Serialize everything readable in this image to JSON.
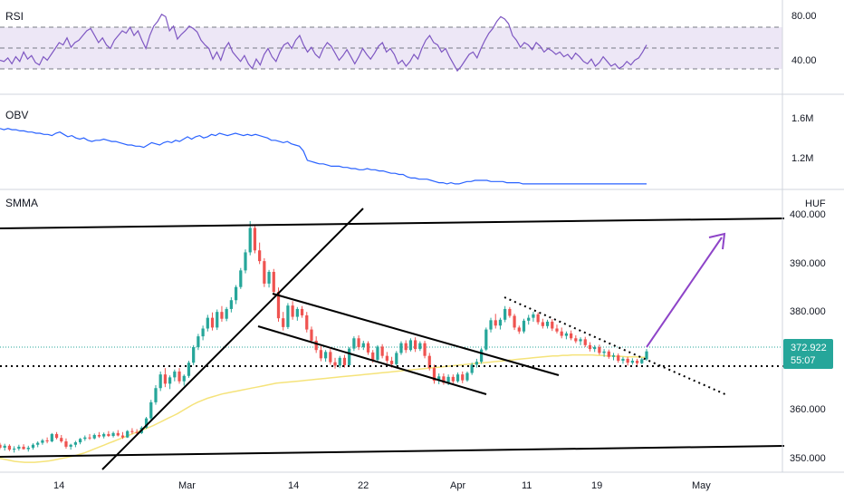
{
  "panes": {
    "rsi": {
      "title": "RSI",
      "ticks": [
        "80.00",
        "40.00"
      ]
    },
    "obv": {
      "title": "OBV",
      "ticks": [
        "1.6M",
        "1.2M"
      ]
    },
    "price": {
      "title": "SMMA",
      "currency": "HUF",
      "ticks": [
        "400.000",
        "390.000",
        "380.000",
        "360.000",
        "350.000"
      ],
      "last_price": "372.922",
      "countdown": "55:07"
    }
  },
  "time_axis": {
    "labels": [
      "14",
      "Mar",
      "14",
      "22",
      "Apr",
      "11",
      "19",
      "May"
    ]
  },
  "colors": {
    "rsi_line": "#7e57c2",
    "rsi_band": "#ede7f6",
    "obv_line": "#2962ff",
    "smma_line": "#f5e37a",
    "candle_up": "#26a69a",
    "candle_down": "#ef5350",
    "last_price_label": "#26a69a",
    "drawings": "#000000",
    "arrow": "#8e44c8"
  },
  "chart_data": [
    {
      "type": "line",
      "name": "RSI",
      "ylim": [
        20,
        90
      ],
      "levels": [
        70,
        50,
        30
      ],
      "x_start": "2021-02-05",
      "values": [
        45,
        44,
        47,
        42,
        48,
        44,
        52,
        46,
        49,
        43,
        41,
        48,
        45,
        50,
        55,
        60,
        58,
        64,
        56,
        60,
        62,
        66,
        70,
        72,
        66,
        60,
        64,
        58,
        55,
        62,
        66,
        70,
        68,
        73,
        66,
        70,
        62,
        55,
        66,
        74,
        78,
        84,
        82,
        70,
        74,
        63,
        67,
        70,
        74,
        72,
        69,
        62,
        58,
        55,
        46,
        52,
        45,
        55,
        60,
        52,
        48,
        44,
        49,
        42,
        38,
        46,
        41,
        50,
        55,
        48,
        44,
        52,
        58,
        60,
        55,
        62,
        66,
        58,
        52,
        56,
        50,
        47,
        55,
        60,
        57,
        51,
        45,
        49,
        54,
        48,
        42,
        48,
        55,
        50,
        46,
        51,
        57,
        60,
        52,
        55,
        50,
        42,
        45,
        40,
        44,
        50,
        46,
        55,
        62,
        66,
        60,
        58,
        52,
        55,
        48,
        42,
        36,
        40,
        45,
        50,
        52,
        47,
        55,
        62,
        68,
        72,
        78,
        82,
        80,
        76,
        66,
        62,
        56,
        60,
        58,
        54,
        60,
        57,
        52,
        55,
        53,
        50,
        52,
        48,
        50,
        46,
        51,
        48,
        44,
        42,
        46,
        40,
        43,
        48,
        44,
        40,
        42,
        38,
        40,
        44,
        41,
        45,
        47,
        52,
        58
      ]
    },
    {
      "type": "line",
      "name": "OBV",
      "ylim": [
        1.0,
        1.8
      ],
      "values": [
        1.54,
        1.53,
        1.54,
        1.53,
        1.53,
        1.52,
        1.52,
        1.51,
        1.51,
        1.5,
        1.5,
        1.49,
        1.49,
        1.48,
        1.5,
        1.51,
        1.49,
        1.47,
        1.48,
        1.46,
        1.45,
        1.46,
        1.44,
        1.43,
        1.44,
        1.44,
        1.45,
        1.44,
        1.43,
        1.43,
        1.42,
        1.41,
        1.4,
        1.4,
        1.39,
        1.39,
        1.38,
        1.4,
        1.42,
        1.41,
        1.4,
        1.42,
        1.43,
        1.42,
        1.44,
        1.43,
        1.45,
        1.47,
        1.45,
        1.47,
        1.48,
        1.46,
        1.47,
        1.49,
        1.48,
        1.5,
        1.49,
        1.48,
        1.49,
        1.5,
        1.49,
        1.48,
        1.49,
        1.48,
        1.49,
        1.48,
        1.47,
        1.46,
        1.44,
        1.44,
        1.43,
        1.42,
        1.43,
        1.41,
        1.4,
        1.39,
        1.35,
        1.27,
        1.26,
        1.25,
        1.24,
        1.24,
        1.23,
        1.22,
        1.22,
        1.22,
        1.21,
        1.21,
        1.2,
        1.2,
        1.19,
        1.19,
        1.2,
        1.19,
        1.19,
        1.18,
        1.18,
        1.17,
        1.16,
        1.16,
        1.15,
        1.15,
        1.13,
        1.12,
        1.12,
        1.11,
        1.11,
        1.11,
        1.1,
        1.09,
        1.08,
        1.08,
        1.07,
        1.08,
        1.07,
        1.07,
        1.08,
        1.09,
        1.09,
        1.1,
        1.1,
        1.1,
        1.1,
        1.09,
        1.09,
        1.09,
        1.09,
        1.08,
        1.08,
        1.08,
        1.08,
        1.07,
        1.07,
        1.07,
        1.07,
        1.07,
        1.07,
        1.07,
        1.07,
        1.07,
        1.07,
        1.07,
        1.07,
        1.07,
        1.07,
        1.07,
        1.07,
        1.07,
        1.07,
        1.07,
        1.07,
        1.07,
        1.07,
        1.07,
        1.07,
        1.07,
        1.07,
        1.07,
        1.07,
        1.07,
        1.07,
        1.07,
        1.07
      ]
    },
    {
      "type": "candlestick",
      "name": "Price",
      "currency": "HUF",
      "ylim": [
        348,
        402
      ],
      "last": 372.922,
      "ohlc": [
        [
          353.8,
          354.2,
          352.9,
          353.2
        ],
        [
          353.2,
          354.0,
          352.6,
          353.6
        ],
        [
          353.6,
          353.9,
          352.5,
          352.8
        ],
        [
          352.8,
          353.5,
          352.2,
          353.0
        ],
        [
          353.0,
          353.8,
          352.6,
          353.4
        ],
        [
          353.4,
          353.9,
          352.8,
          352.9
        ],
        [
          352.9,
          353.6,
          352.4,
          353.2
        ],
        [
          353.2,
          354.1,
          352.8,
          353.8
        ],
        [
          353.8,
          354.5,
          353.3,
          354.2
        ],
        [
          354.2,
          355.0,
          353.8,
          354.7
        ],
        [
          354.7,
          355.3,
          354.1,
          354.5
        ],
        [
          354.5,
          356.2,
          354.3,
          356.0
        ],
        [
          356.0,
          356.4,
          354.9,
          355.2
        ],
        [
          355.2,
          355.8,
          354.2,
          354.5
        ],
        [
          354.5,
          355.1,
          353.0,
          353.4
        ],
        [
          353.4,
          354.0,
          352.8,
          353.8
        ],
        [
          353.8,
          354.6,
          353.3,
          354.3
        ],
        [
          354.3,
          355.2,
          353.9,
          355.0
        ],
        [
          355.0,
          355.7,
          354.6,
          355.3
        ],
        [
          355.3,
          356.0,
          354.8,
          355.1
        ],
        [
          355.1,
          356.1,
          354.9,
          355.8
        ],
        [
          355.8,
          356.4,
          355.2,
          355.5
        ],
        [
          355.5,
          356.3,
          355.1,
          356.0
        ],
        [
          356.0,
          356.6,
          355.4,
          355.6
        ],
        [
          355.6,
          356.5,
          355.3,
          356.2
        ],
        [
          356.2,
          356.8,
          355.5,
          355.7
        ],
        [
          355.7,
          356.4,
          355.0,
          355.3
        ],
        [
          355.3,
          356.8,
          355.2,
          356.6
        ],
        [
          356.6,
          357.2,
          356.0,
          356.4
        ],
        [
          356.4,
          357.0,
          355.8,
          356.2
        ],
        [
          356.2,
          357.6,
          356.0,
          357.3
        ],
        [
          357.3,
          359.5,
          357.1,
          359.2
        ],
        [
          359.2,
          363.0,
          358.8,
          362.5
        ],
        [
          362.5,
          366.0,
          362.0,
          365.4
        ],
        [
          365.4,
          368.8,
          364.8,
          368.2
        ],
        [
          368.2,
          369.5,
          365.6,
          366.3
        ],
        [
          366.3,
          368.0,
          365.2,
          367.6
        ],
        [
          367.6,
          369.2,
          366.8,
          368.8
        ],
        [
          368.8,
          369.5,
          366.3,
          366.8
        ],
        [
          366.8,
          368.2,
          365.9,
          367.9
        ],
        [
          367.9,
          371.0,
          367.5,
          370.6
        ],
        [
          370.6,
          374.2,
          370.1,
          373.8
        ],
        [
          373.8,
          376.5,
          373.2,
          376.0
        ],
        [
          376.0,
          378.2,
          375.2,
          377.6
        ],
        [
          377.6,
          380.4,
          377.0,
          379.8
        ],
        [
          379.8,
          380.9,
          377.2,
          377.8
        ],
        [
          377.8,
          381.5,
          377.3,
          381.0
        ],
        [
          381.0,
          382.2,
          379.0,
          379.6
        ],
        [
          379.6,
          382.0,
          379.1,
          381.6
        ],
        [
          381.6,
          384.0,
          380.9,
          383.4
        ],
        [
          383.4,
          386.5,
          382.6,
          386.1
        ],
        [
          386.1,
          390.0,
          385.7,
          389.5
        ],
        [
          389.5,
          393.8,
          388.9,
          393.2
        ],
        [
          393.2,
          399.6,
          392.6,
          398.2
        ],
        [
          398.2,
          398.8,
          393.0,
          393.6
        ],
        [
          393.6,
          395.2,
          390.8,
          391.4
        ],
        [
          391.4,
          392.0,
          386.1,
          386.8
        ],
        [
          386.8,
          389.6,
          386.0,
          389.2
        ],
        [
          389.2,
          389.8,
          384.4,
          385.1
        ],
        [
          385.1,
          386.0,
          379.0,
          379.7
        ],
        [
          379.7,
          381.0,
          377.2,
          377.9
        ],
        [
          377.9,
          382.8,
          377.5,
          382.3
        ],
        [
          382.3,
          383.2,
          379.4,
          380.0
        ],
        [
          380.0,
          382.0,
          379.2,
          381.6
        ],
        [
          381.6,
          382.2,
          379.8,
          380.3
        ],
        [
          380.3,
          381.0,
          376.8,
          377.4
        ],
        [
          377.4,
          378.0,
          374.6,
          375.1
        ],
        [
          375.1,
          376.0,
          372.6,
          373.2
        ],
        [
          373.2,
          374.0,
          370.9,
          371.5
        ],
        [
          371.5,
          373.2,
          370.8,
          372.8
        ],
        [
          372.8,
          373.4,
          370.2,
          370.7
        ],
        [
          370.7,
          371.6,
          369.4,
          370.0
        ],
        [
          370.0,
          372.0,
          369.5,
          371.6
        ],
        [
          371.6,
          372.2,
          369.6,
          370.1
        ],
        [
          370.1,
          373.8,
          369.9,
          373.5
        ],
        [
          373.5,
          376.0,
          373.0,
          375.6
        ],
        [
          375.6,
          376.2,
          373.2,
          373.8
        ],
        [
          373.8,
          375.1,
          373.2,
          374.6
        ],
        [
          374.6,
          375.0,
          372.2,
          372.7
        ],
        [
          372.7,
          373.2,
          370.6,
          371.2
        ],
        [
          371.2,
          374.2,
          370.9,
          373.9
        ],
        [
          373.9,
          374.4,
          371.5,
          372.0
        ],
        [
          372.0,
          372.8,
          370.5,
          371.0
        ],
        [
          371.0,
          371.8,
          369.6,
          370.3
        ],
        [
          370.3,
          373.0,
          370.0,
          372.6
        ],
        [
          372.6,
          375.0,
          372.2,
          374.6
        ],
        [
          374.6,
          375.2,
          372.6,
          373.2
        ],
        [
          373.2,
          375.6,
          372.9,
          375.2
        ],
        [
          375.2,
          375.8,
          372.8,
          373.4
        ],
        [
          373.4,
          375.0,
          373.0,
          374.6
        ],
        [
          374.6,
          375.1,
          371.5,
          372.0
        ],
        [
          372.0,
          372.6,
          369.0,
          369.5
        ],
        [
          369.5,
          370.2,
          366.3,
          366.9
        ],
        [
          366.9,
          368.4,
          366.2,
          367.8
        ],
        [
          367.8,
          368.4,
          366.1,
          366.5
        ],
        [
          366.5,
          368.2,
          366.0,
          367.7
        ],
        [
          367.7,
          368.2,
          366.3,
          366.8
        ],
        [
          366.8,
          368.6,
          366.5,
          368.2
        ],
        [
          368.2,
          368.8,
          366.4,
          367.0
        ],
        [
          367.0,
          368.8,
          366.7,
          368.5
        ],
        [
          368.5,
          370.6,
          368.1,
          370.2
        ],
        [
          370.2,
          371.4,
          369.6,
          370.8
        ],
        [
          370.8,
          373.6,
          370.4,
          373.3
        ],
        [
          373.3,
          377.8,
          373.0,
          377.4
        ],
        [
          377.4,
          379.8,
          376.8,
          379.3
        ],
        [
          379.3,
          380.6,
          377.6,
          378.2
        ],
        [
          378.2,
          379.8,
          377.4,
          379.4
        ],
        [
          379.4,
          382.2,
          378.9,
          381.6
        ],
        [
          381.6,
          382.0,
          379.8,
          380.2
        ],
        [
          380.2,
          380.6,
          377.3,
          377.8
        ],
        [
          377.8,
          378.2,
          376.5,
          377.0
        ],
        [
          377.0,
          379.6,
          376.6,
          379.2
        ],
        [
          379.2,
          380.4,
          378.4,
          379.8
        ],
        [
          379.8,
          381.0,
          379.0,
          380.5
        ],
        [
          380.5,
          380.9,
          378.4,
          378.9
        ],
        [
          378.9,
          379.6,
          377.6,
          378.1
        ],
        [
          378.1,
          379.4,
          377.6,
          379.0
        ],
        [
          379.0,
          379.5,
          377.1,
          377.6
        ],
        [
          377.6,
          378.4,
          376.6,
          377.0
        ],
        [
          377.0,
          377.8,
          375.6,
          376.1
        ],
        [
          376.1,
          377.0,
          375.4,
          376.6
        ],
        [
          376.6,
          377.2,
          375.2,
          375.6
        ],
        [
          375.6,
          376.2,
          374.6,
          375.0
        ],
        [
          375.0,
          375.8,
          374.2,
          375.4
        ],
        [
          375.4,
          375.9,
          373.8,
          374.2
        ],
        [
          374.2,
          374.8,
          372.9,
          373.4
        ],
        [
          373.4,
          374.2,
          372.8,
          373.8
        ],
        [
          373.8,
          374.3,
          372.2,
          372.6
        ],
        [
          372.6,
          373.4,
          371.8,
          372.9
        ],
        [
          372.9,
          373.3,
          371.4,
          371.8
        ],
        [
          371.8,
          372.6,
          371.1,
          372.1
        ],
        [
          372.1,
          372.5,
          370.6,
          371.0
        ],
        [
          371.0,
          371.8,
          370.4,
          371.4
        ],
        [
          371.4,
          371.8,
          370.0,
          370.6
        ],
        [
          370.6,
          371.5,
          370.2,
          371.0
        ],
        [
          371.0,
          371.4,
          370.1,
          370.5
        ],
        [
          370.5,
          371.6,
          370.3,
          371.3
        ],
        [
          371.3,
          373.4,
          371.0,
          372.922
        ]
      ],
      "smma": [
        351.0,
        350.8,
        350.6,
        350.4,
        350.3,
        350.2,
        350.2,
        350.2,
        350.3,
        350.4,
        350.5,
        350.7,
        350.9,
        351.1,
        351.3,
        351.5,
        351.8,
        352.1,
        352.5,
        352.9,
        353.3,
        353.7,
        354.1,
        354.5,
        354.9,
        355.3,
        355.7,
        356.1,
        356.5,
        356.9,
        357.3,
        357.7,
        358.2,
        358.7,
        359.2,
        359.7,
        360.2,
        360.8,
        361.4,
        362.0,
        362.5,
        362.9,
        363.3,
        363.6,
        363.9,
        364.2,
        364.4,
        364.6,
        364.8,
        365.0,
        365.2,
        365.4,
        365.6,
        365.8,
        366.0,
        366.2,
        366.4,
        366.5,
        366.6,
        366.7,
        366.8,
        366.9,
        367.0,
        367.1,
        367.2,
        367.3,
        367.4,
        367.5,
        367.6,
        367.7,
        367.8,
        367.9,
        368.0,
        368.1,
        368.2,
        368.3,
        368.4,
        368.5,
        368.6,
        368.7,
        368.8,
        368.9,
        369.0,
        369.1,
        369.2,
        369.3,
        369.4,
        369.5,
        369.6,
        369.7,
        369.8,
        369.9,
        370.0,
        370.1,
        370.2,
        370.3,
        370.4,
        370.5,
        370.6,
        370.7,
        370.8,
        370.9,
        371.0,
        371.1,
        371.2,
        371.3,
        371.4,
        371.5,
        371.6,
        371.7,
        371.8,
        371.9,
        372.0,
        372.0,
        372.1,
        372.1,
        372.2,
        372.2,
        372.2,
        372.2,
        372.2,
        372.1,
        372.1,
        372.0,
        372.0,
        371.9,
        371.9,
        371.8,
        371.8,
        371.8,
        371.7,
        371.7
      ]
    }
  ]
}
